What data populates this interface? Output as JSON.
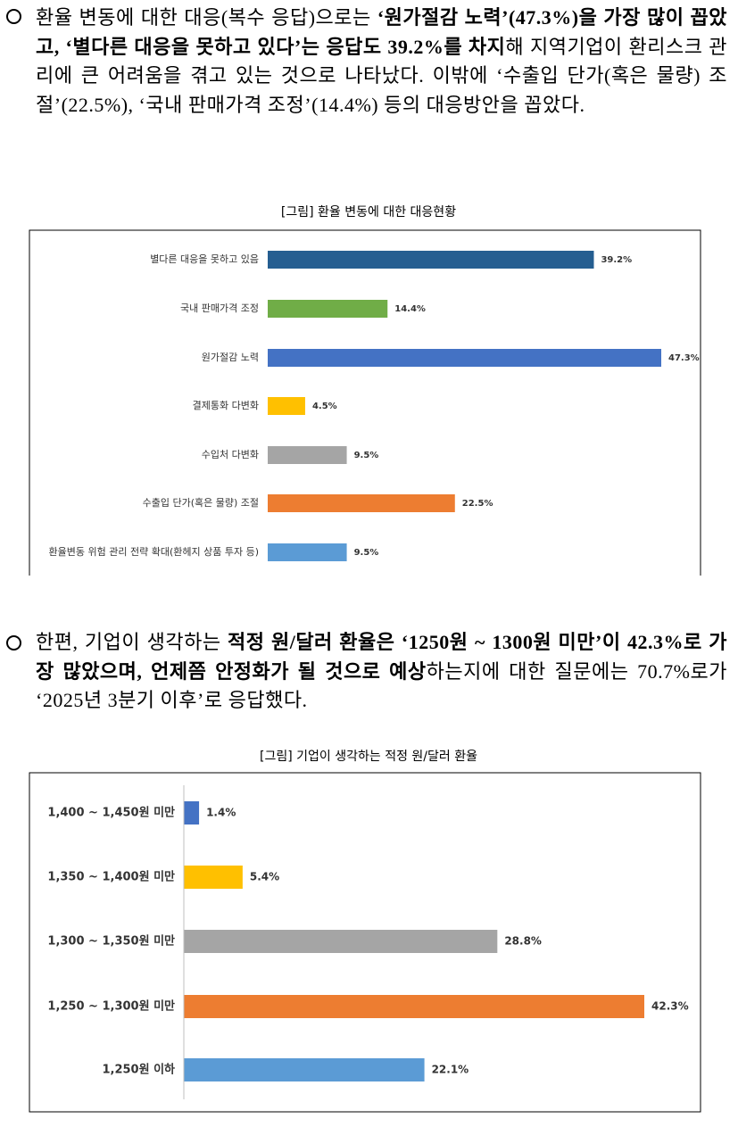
{
  "paragraphs": [
    {
      "runs": [
        {
          "text": "환율 변동에 대한 대응(복수 응답)으로는 ",
          "bold": false
        },
        {
          "text": "‘원가절감 노력’(47.3%)을 가장 많이 꼽았고, ‘별다른 대응을 못하고 있다’는 응답도 39.2%를 차지",
          "bold": true
        },
        {
          "text": "해 지역기업이 환리스크 관리에 큰 어려움을 겪고 있는 것으로 나타났다. 이밖에 ‘수출입 단가(혹은 물량) 조절’(22.5%), ‘국내 판매가격 조정’(14.4%) 등의 대응방안을 꼽았다.",
          "bold": false
        }
      ]
    },
    {
      "runs": [
        {
          "text": "한편, 기업이 생각하는 ",
          "bold": false
        },
        {
          "text": "적정 원/달러 환율은 ‘1250원 ~ 1300원 미만’이 42.3%로 가장 많았으며, 언제쯤 안정화가 될 것으로 예상",
          "bold": true
        },
        {
          "text": "하는지에 대한 질문에는 70.7%로가 ‘2025년 3분기 이후’로 응답했다.",
          "bold": false
        }
      ]
    }
  ],
  "chart_data": [
    {
      "type": "bar",
      "orientation": "horizontal",
      "title": "[그림] 환율 변동에 대한 대응현황",
      "categories": [
        "별다른 대응을 못하고 있음",
        "국내 판매가격 조정",
        "원가절감 노력",
        "결제통화 다변화",
        "수입처 다변화",
        "수출입 단가(혹은 물량) 조절",
        "환율변동 위험 관리 전략 확대(환헤지 상품 투자 등)"
      ],
      "values": [
        39.2,
        14.4,
        47.3,
        4.5,
        9.5,
        22.5,
        9.5
      ],
      "value_labels": [
        "39.2%",
        "14.4%",
        "47.3%",
        "4.5%",
        "9.5%",
        "22.5%",
        "9.5%"
      ],
      "colors": [
        "#255e91",
        "#70ad47",
        "#4472c4",
        "#ffc000",
        "#a5a5a5",
        "#ed7d31",
        "#5b9bd5"
      ],
      "axis_line": false
    },
    {
      "type": "bar",
      "orientation": "horizontal",
      "title": "[그림] 기업이 생각하는 적정 원/달러 환율",
      "categories": [
        "1,400 ~ 1,450원 미만",
        "1,350 ~ 1,400원 미만",
        "1,300 ~ 1,350원 미만",
        "1,250 ~ 1,300원 미만",
        "1,250원 이하"
      ],
      "values": [
        1.4,
        5.4,
        28.8,
        42.3,
        22.1
      ],
      "value_labels": [
        "1.4%",
        "5.4%",
        "28.8%",
        "42.3%",
        "22.1%"
      ],
      "colors": [
        "#4472c4",
        "#ffc000",
        "#a5a5a5",
        "#ed7d31",
        "#5b9bd5"
      ],
      "axis_line": true
    }
  ]
}
